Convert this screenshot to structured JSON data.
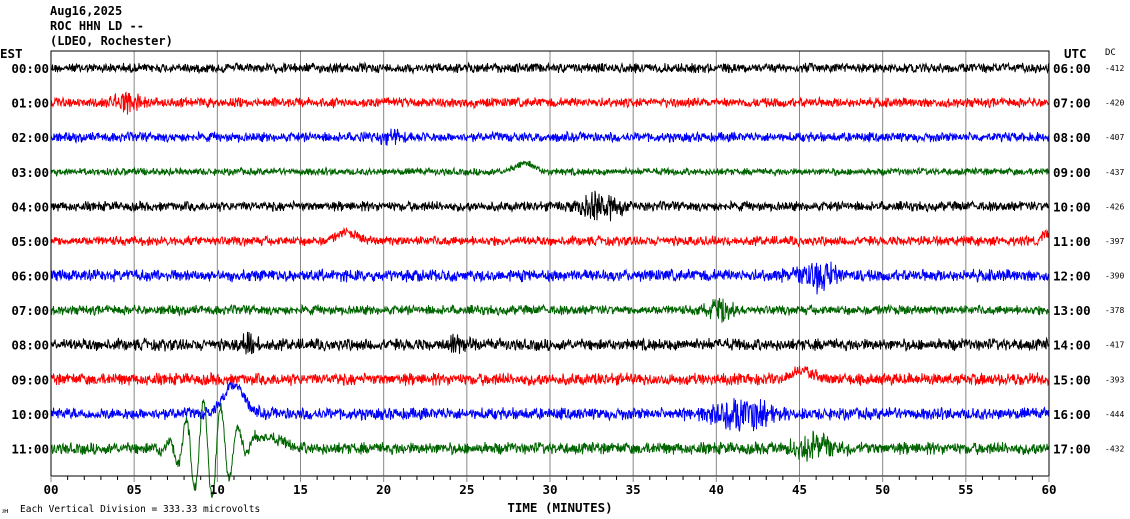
{
  "header": {
    "date": "Aug16,2025",
    "station": "ROC HHN LD --",
    "network": "(LDEO, Rochester)"
  },
  "chart_data": {
    "type": "line",
    "title": "Aug16,2025 ROC HHN LD -- (LDEO, Rochester)",
    "xlabel": "TIME (MINUTES)",
    "xlim": [
      0,
      60
    ],
    "x_ticks": [
      "00",
      "05",
      "10",
      "15",
      "20",
      "25",
      "30",
      "35",
      "40",
      "45",
      "50",
      "55",
      "60"
    ],
    "minor_tick_interval_minutes": 1,
    "left_axis_title": "EST",
    "right_axis_title": "UTC",
    "dc_title": "DC",
    "scale_note": "Each Vertical Division =  333.33 microvolts",
    "corner_mark": "ᴊʜ",
    "rows": [
      {
        "est": "00:00",
        "utc": "06:00",
        "dc": "-412",
        "color": "#000000",
        "noise": 4,
        "events": []
      },
      {
        "est": "01:00",
        "utc": "07:00",
        "dc": "-420",
        "color": "#ff0000",
        "noise": 4,
        "events": [
          {
            "t": 4.5,
            "amp": 10,
            "dur": 1.5
          }
        ]
      },
      {
        "est": "02:00",
        "utc": "08:00",
        "dc": "-407",
        "color": "#0000ff",
        "noise": 4,
        "events": [
          {
            "t": 20.5,
            "amp": 6,
            "dur": 1.5
          }
        ]
      },
      {
        "est": "03:00",
        "utc": "09:00",
        "dc": "-437",
        "color": "#006400",
        "noise": 3,
        "events": [
          {
            "t": 28.5,
            "amp": -9,
            "dur": 1,
            "smooth": true
          }
        ]
      },
      {
        "est": "04:00",
        "utc": "10:00",
        "dc": "-426",
        "color": "#000000",
        "noise": 4,
        "events": [
          {
            "t": 33,
            "amp": 14,
            "dur": 2
          }
        ]
      },
      {
        "est": "05:00",
        "utc": "11:00",
        "dc": "-397",
        "color": "#ff0000",
        "noise": 4,
        "events": [
          {
            "t": 17.8,
            "amp": -8,
            "dur": 1.2,
            "smooth": true
          },
          {
            "t": 59.8,
            "amp": -8,
            "dur": 0.4,
            "smooth": true
          }
        ]
      },
      {
        "est": "06:00",
        "utc": "12:00",
        "dc": "-390",
        "color": "#0000ff",
        "noise": 5,
        "events": [
          {
            "t": 46,
            "amp": 14,
            "dur": 2
          }
        ]
      },
      {
        "est": "07:00",
        "utc": "13:00",
        "dc": "-378",
        "color": "#006400",
        "noise": 4,
        "events": [
          {
            "t": 40.3,
            "amp": 12,
            "dur": 1
          }
        ]
      },
      {
        "est": "08:00",
        "utc": "14:00",
        "dc": "-417",
        "color": "#000000",
        "noise": 5,
        "events": [
          {
            "t": 12,
            "amp": 12,
            "dur": 0.8
          },
          {
            "t": 24.5,
            "amp": 10,
            "dur": 1
          }
        ]
      },
      {
        "est": "09:00",
        "utc": "15:00",
        "dc": "-393",
        "color": "#ff0000",
        "noise": 5,
        "events": [
          {
            "t": 45.2,
            "amp": -9,
            "dur": 1.2,
            "smooth": true
          }
        ]
      },
      {
        "est": "10:00",
        "utc": "16:00",
        "dc": "-444",
        "color": "#0000ff",
        "noise": 5,
        "events": [
          {
            "t": 41.5,
            "amp": 16,
            "dur": 3
          },
          {
            "t": 11,
            "amp": -30,
            "dur": 1.2,
            "smooth": true
          }
        ]
      },
      {
        "est": "11:00",
        "utc": "17:00",
        "dc": "-432",
        "color": "#006400",
        "noise": 5,
        "events": [
          {
            "t": 9.5,
            "amp": 50,
            "dur": 2.5,
            "swing": true
          },
          {
            "t": 13,
            "amp": -10,
            "dur": 2,
            "smooth": true
          },
          {
            "t": 46,
            "amp": 14,
            "dur": 2
          }
        ]
      }
    ]
  }
}
